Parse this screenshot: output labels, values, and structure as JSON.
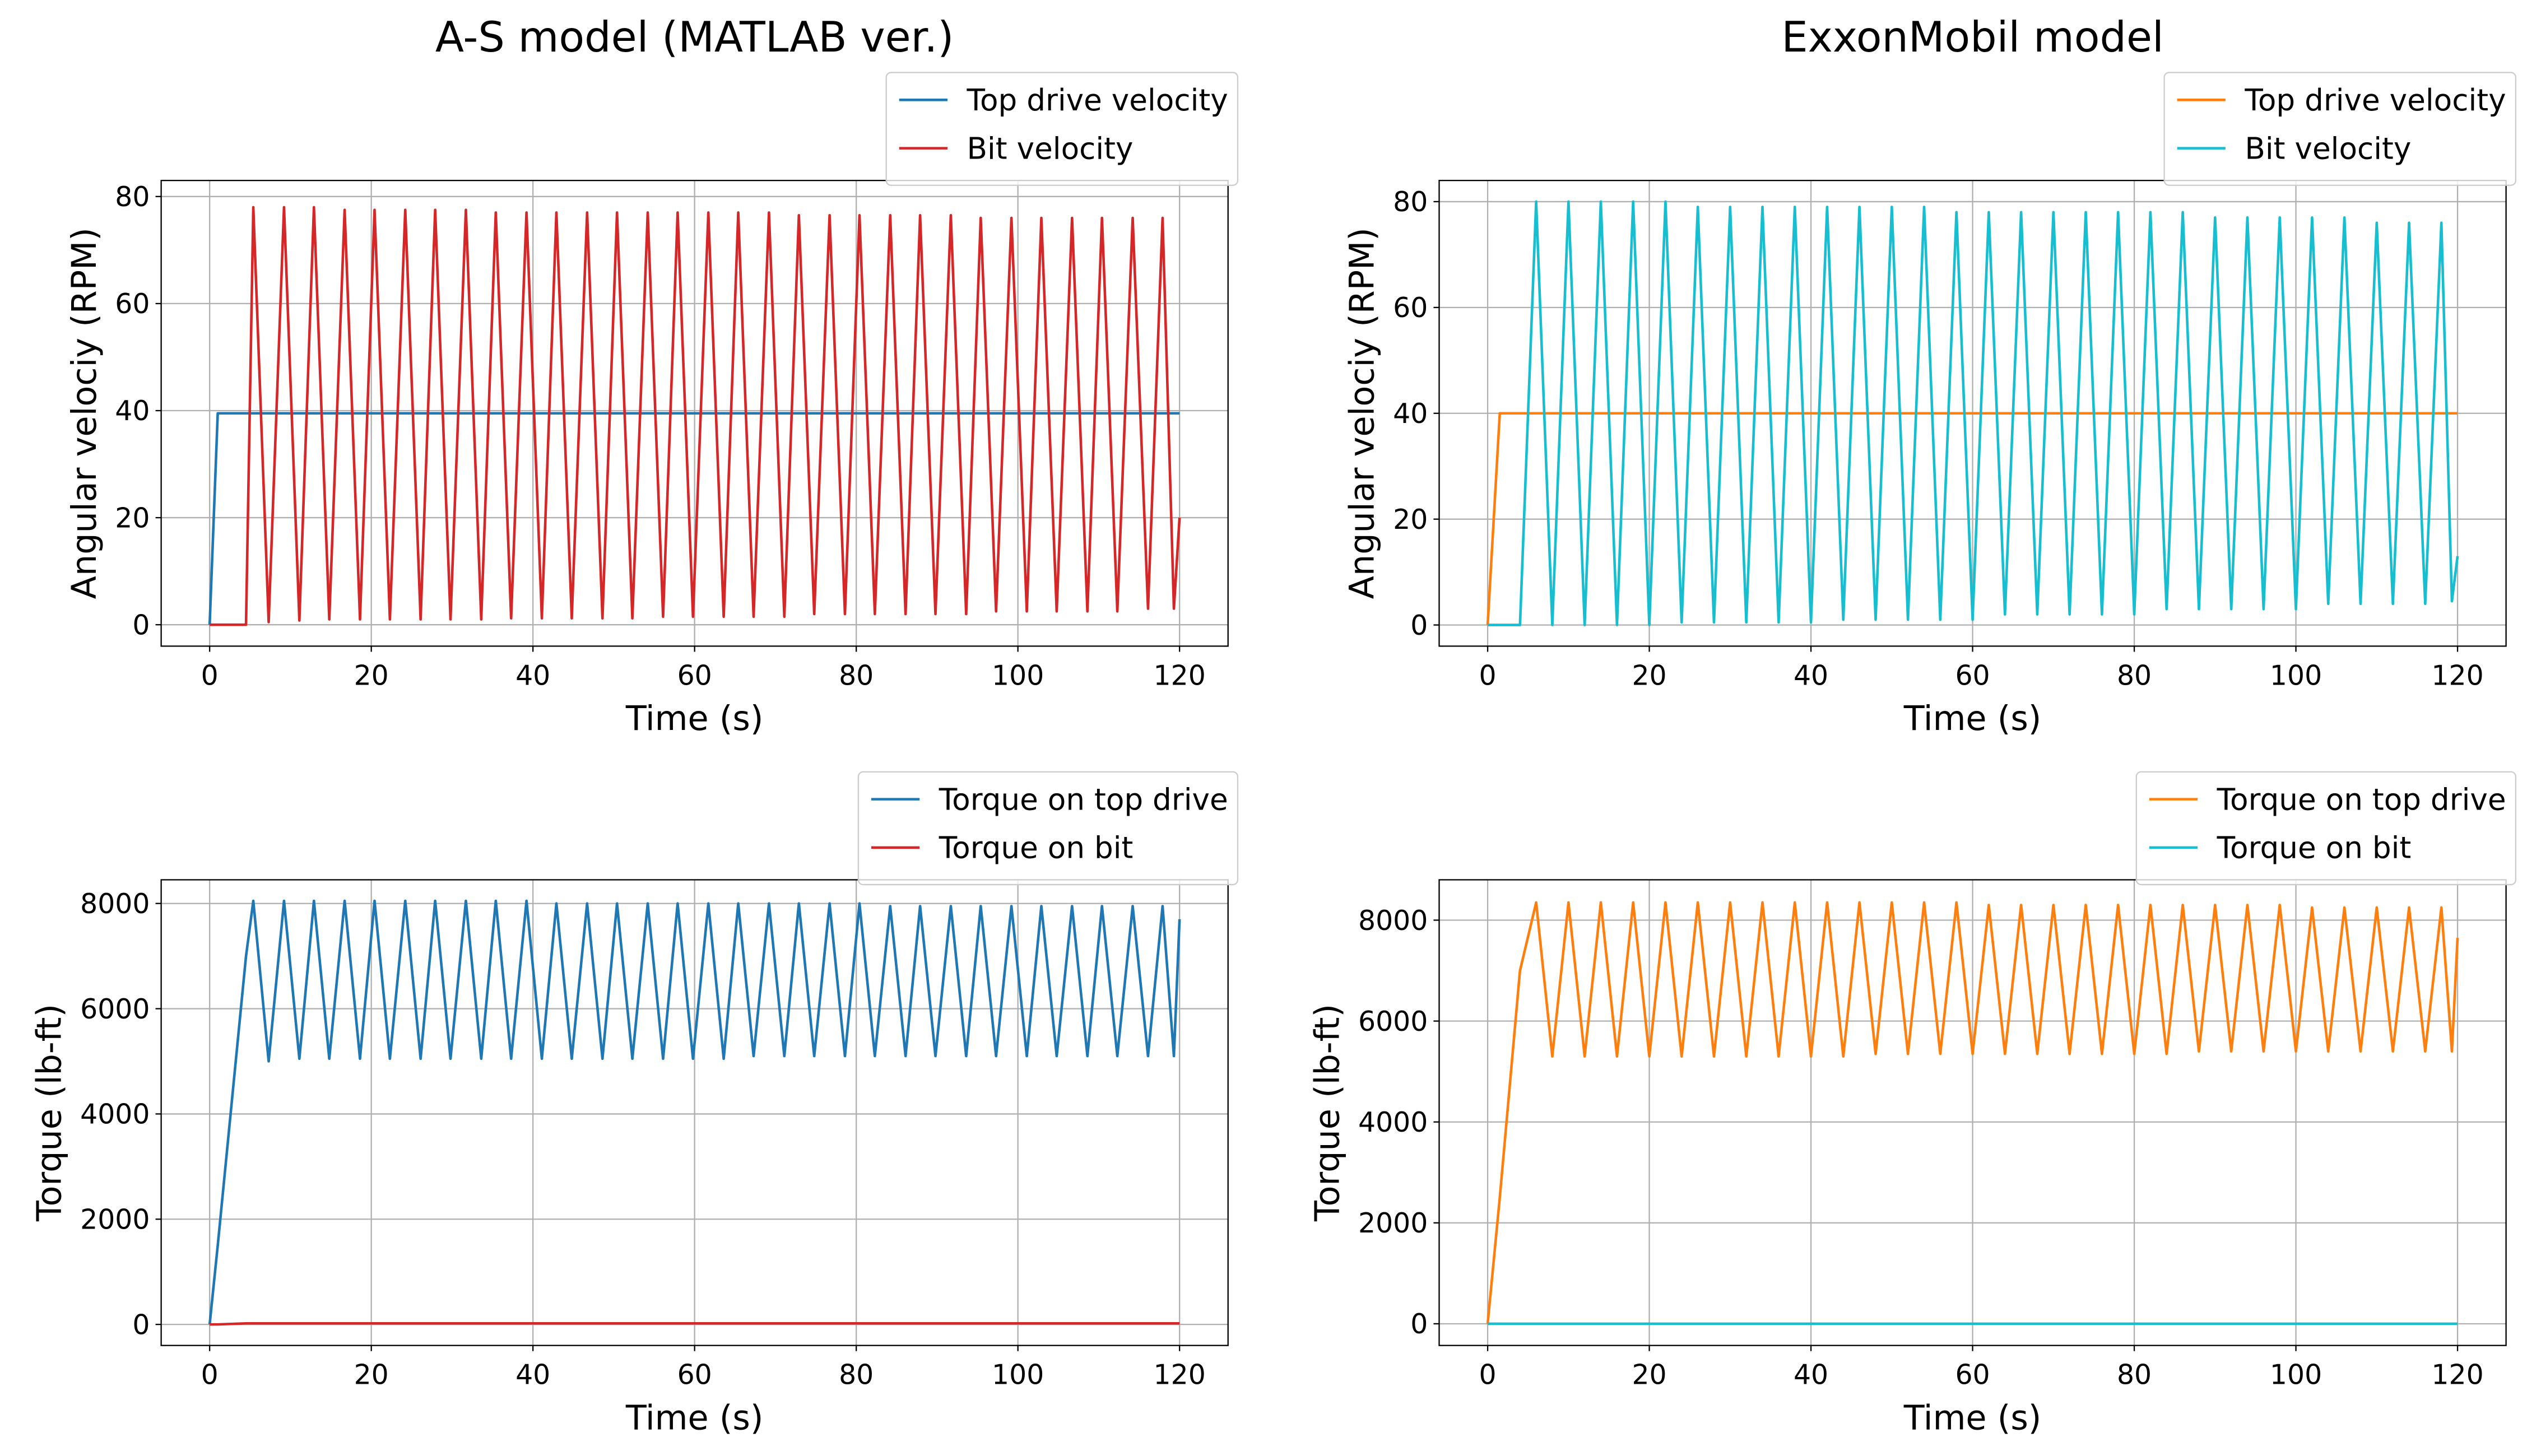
{
  "chart_data": [
    {
      "type": "line",
      "title": "A-S model (MATLAB ver.)",
      "xlabel": "Time (s)",
      "ylabel": "Angular velociy (RPM)",
      "x": [
        0,
        1,
        4.5,
        5.4,
        7.3,
        9.2,
        11.1,
        12.9,
        14.8,
        16.7,
        18.6,
        20.4,
        22.3,
        24.2,
        26.1,
        27.9,
        29.8,
        31.7,
        33.6,
        35.4,
        37.3,
        39.2,
        41.1,
        42.9,
        44.8,
        46.7,
        48.6,
        50.4,
        52.3,
        54.2,
        56.1,
        57.9,
        59.8,
        61.7,
        63.6,
        65.4,
        67.3,
        69.2,
        71.1,
        72.9,
        74.8,
        76.7,
        78.6,
        80.4,
        82.3,
        84.2,
        86.1,
        87.9,
        89.8,
        91.7,
        93.6,
        95.4,
        97.3,
        99.2,
        101.1,
        102.9,
        104.8,
        106.7,
        108.6,
        110.4,
        112.3,
        114.2,
        116.1,
        117.9,
        119.3,
        120
      ],
      "series": [
        {
          "name": "Top drive velocity",
          "color": "#1f77b4",
          "values": [
            0,
            39.5,
            39.5,
            39.5,
            39.5,
            39.5,
            39.5,
            39.5,
            39.5,
            39.5,
            39.5,
            39.5,
            39.5,
            39.5,
            39.5,
            39.5,
            39.5,
            39.5,
            39.5,
            39.5,
            39.5,
            39.5,
            39.5,
            39.5,
            39.5,
            39.5,
            39.5,
            39.5,
            39.5,
            39.5,
            39.5,
            39.5,
            39.5,
            39.5,
            39.5,
            39.5,
            39.5,
            39.5,
            39.5,
            39.5,
            39.5,
            39.5,
            39.5,
            39.5,
            39.5,
            39.5,
            39.5,
            39.5,
            39.5,
            39.5,
            39.5,
            39.5,
            39.5,
            39.5,
            39.5,
            39.5,
            39.5,
            39.5,
            39.5,
            39.5,
            39.5,
            39.5,
            39.5,
            39.5,
            39.5,
            39.5
          ]
        },
        {
          "name": "Bit velocity",
          "color": "#d62728",
          "values": [
            0,
            0,
            0,
            78,
            0.5,
            78,
            0.8,
            78,
            1,
            77.5,
            1,
            77.5,
            1,
            77.5,
            1,
            77.5,
            1,
            77.5,
            1,
            77,
            1.2,
            77,
            1.2,
            77,
            1.2,
            77,
            1.2,
            77,
            1.2,
            77,
            1.5,
            77,
            1.5,
            77,
            1.5,
            77,
            1.5,
            77,
            1.5,
            76.5,
            2,
            76.5,
            2,
            76.5,
            2,
            76.5,
            2,
            76.5,
            2,
            76.5,
            2,
            76,
            2.5,
            76,
            2.5,
            76,
            2.5,
            76,
            2.5,
            76,
            2.5,
            76,
            3,
            76,
            3,
            20
          ]
        }
      ],
      "xlim": [
        -6,
        126
      ],
      "ylim": [
        -4,
        83
      ],
      "xticks": [
        0,
        20,
        40,
        60,
        80,
        100,
        120
      ],
      "yticks": [
        0,
        20,
        40,
        60,
        80
      ],
      "grid": true,
      "legend": "upper right"
    },
    {
      "type": "line",
      "title": "ExxonMobil model",
      "xlabel": "Time (s)",
      "ylabel": "Angular velociy (RPM)",
      "x": [
        0,
        1.5,
        4,
        6,
        8,
        10,
        12,
        14,
        16,
        18,
        20,
        22,
        24,
        26,
        28,
        30,
        32,
        34,
        36,
        38,
        40,
        42,
        44,
        46,
        48,
        50,
        52,
        54,
        56,
        58,
        60,
        62,
        64,
        66,
        68,
        70,
        72,
        74,
        76,
        78,
        80,
        82,
        84,
        86,
        88,
        90,
        92,
        94,
        96,
        98,
        100,
        102,
        104,
        106,
        108,
        110,
        112,
        114,
        116,
        118,
        119.3,
        120
      ],
      "series": [
        {
          "name": "Top drive velocity",
          "color": "#ff7f0e",
          "values": [
            0,
            40,
            40,
            40,
            40,
            40,
            40,
            40,
            40,
            40,
            40,
            40,
            40,
            40,
            40,
            40,
            40,
            40,
            40,
            40,
            40,
            40,
            40,
            40,
            40,
            40,
            40,
            40,
            40,
            40,
            40,
            40,
            40,
            40,
            40,
            40,
            40,
            40,
            40,
            40,
            40,
            40,
            40,
            40,
            40,
            40,
            40,
            40,
            40,
            40,
            40,
            40,
            40,
            40,
            40,
            40,
            40,
            40,
            40,
            40,
            40,
            40
          ]
        },
        {
          "name": "Bit velocity",
          "color": "#17becf",
          "values": [
            0,
            0,
            0,
            80,
            0,
            80,
            0,
            80,
            0,
            80,
            0,
            80,
            0.5,
            79,
            0.5,
            79,
            0.5,
            79,
            0.5,
            79,
            0.5,
            79,
            1,
            79,
            1,
            79,
            1,
            79,
            1,
            78,
            1,
            78,
            2,
            78,
            2,
            78,
            2,
            78,
            2,
            78,
            2,
            78,
            3,
            78,
            3,
            77,
            3,
            77,
            3,
            77,
            3,
            77,
            4,
            77,
            4,
            76,
            4,
            76,
            4,
            76,
            4.5,
            13
          ]
        }
      ],
      "xlim": [
        -6,
        126
      ],
      "ylim": [
        -4,
        84
      ],
      "xticks": [
        0,
        20,
        40,
        60,
        80,
        100,
        120
      ],
      "yticks": [
        0,
        20,
        40,
        60,
        80
      ],
      "grid": true,
      "legend": "upper right"
    },
    {
      "type": "line",
      "xlabel": "Time (s)",
      "ylabel": "Torque (lb-ft)",
      "x": [
        0,
        1,
        4.5,
        5.4,
        7.3,
        9.2,
        11.1,
        12.9,
        14.8,
        16.7,
        18.6,
        20.4,
        22.3,
        24.2,
        26.1,
        27.9,
        29.8,
        31.7,
        33.6,
        35.4,
        37.3,
        39.2,
        41.1,
        42.9,
        44.8,
        46.7,
        48.6,
        50.4,
        52.3,
        54.2,
        56.1,
        57.9,
        59.8,
        61.7,
        63.6,
        65.4,
        67.3,
        69.2,
        71.1,
        72.9,
        74.8,
        76.7,
        78.6,
        80.4,
        82.3,
        84.2,
        86.1,
        87.9,
        89.8,
        91.7,
        93.6,
        95.4,
        97.3,
        99.2,
        101.1,
        102.9,
        104.8,
        106.7,
        108.6,
        110.4,
        112.3,
        114.2,
        116.1,
        117.9,
        119.3,
        120
      ],
      "series": [
        {
          "name": "Torque on top drive",
          "color": "#1f77b4",
          "values": [
            0,
            1500,
            7000,
            8050,
            5000,
            8050,
            5050,
            8050,
            5050,
            8050,
            5050,
            8050,
            5050,
            8050,
            5050,
            8050,
            5050,
            8050,
            5050,
            8050,
            5050,
            8050,
            5050,
            8000,
            5050,
            8000,
            5050,
            8000,
            5050,
            8000,
            5050,
            8000,
            5050,
            8000,
            5050,
            8000,
            5100,
            8000,
            5100,
            8000,
            5100,
            8000,
            5100,
            8000,
            5100,
            7950,
            5100,
            7950,
            5100,
            7950,
            5100,
            7950,
            5100,
            7950,
            5100,
            7950,
            5100,
            7950,
            5100,
            7950,
            5100,
            7950,
            5100,
            7950,
            5100,
            7700
          ]
        },
        {
          "name": "Torque on bit",
          "color": "#d62728",
          "values": [
            0,
            0,
            20,
            20,
            20,
            20,
            20,
            20,
            20,
            20,
            20,
            20,
            20,
            20,
            20,
            20,
            20,
            20,
            20,
            20,
            20,
            20,
            20,
            20,
            20,
            20,
            20,
            20,
            20,
            20,
            20,
            20,
            20,
            20,
            20,
            20,
            20,
            20,
            20,
            20,
            20,
            20,
            20,
            20,
            20,
            20,
            20,
            20,
            20,
            20,
            20,
            20,
            20,
            20,
            20,
            20,
            20,
            20,
            20,
            20,
            20,
            20,
            20,
            20,
            20,
            20
          ]
        }
      ],
      "xlim": [
        -6,
        126
      ],
      "ylim": [
        -400,
        8450
      ],
      "xticks": [
        0,
        20,
        40,
        60,
        80,
        100,
        120
      ],
      "yticks": [
        0,
        2000,
        4000,
        6000,
        8000
      ],
      "grid": true,
      "legend": "upper right"
    },
    {
      "type": "line",
      "xlabel": "Time (s)",
      "ylabel": "Torque (lb-ft)",
      "x": [
        0,
        1.5,
        4,
        6,
        8,
        10,
        12,
        14,
        16,
        18,
        20,
        22,
        24,
        26,
        28,
        30,
        32,
        34,
        36,
        38,
        40,
        42,
        44,
        46,
        48,
        50,
        52,
        54,
        56,
        58,
        60,
        62,
        64,
        66,
        68,
        70,
        72,
        74,
        76,
        78,
        80,
        82,
        84,
        86,
        88,
        90,
        92,
        94,
        96,
        98,
        100,
        102,
        104,
        106,
        108,
        110,
        112,
        114,
        116,
        118,
        119.3,
        120
      ],
      "series": [
        {
          "name": "Torque on top drive",
          "color": "#ff7f0e",
          "values": [
            0,
            2500,
            7000,
            8350,
            5300,
            8350,
            5300,
            8350,
            5300,
            8350,
            5300,
            8350,
            5300,
            8350,
            5300,
            8350,
            5300,
            8350,
            5300,
            8350,
            5300,
            8350,
            5300,
            8350,
            5350,
            8350,
            5350,
            8350,
            5350,
            8350,
            5350,
            8300,
            5350,
            8300,
            5350,
            8300,
            5350,
            8300,
            5350,
            8300,
            5350,
            8300,
            5350,
            8300,
            5400,
            8300,
            5400,
            8300,
            5400,
            8300,
            5400,
            8250,
            5400,
            8250,
            5400,
            8250,
            5400,
            8250,
            5400,
            8250,
            5400,
            7650
          ]
        },
        {
          "name": "Torque on bit",
          "color": "#17becf",
          "values": [
            0,
            0,
            0,
            0,
            0,
            0,
            0,
            0,
            0,
            0,
            0,
            0,
            0,
            0,
            0,
            0,
            0,
            0,
            0,
            0,
            0,
            0,
            0,
            0,
            0,
            0,
            0,
            0,
            0,
            0,
            0,
            0,
            0,
            0,
            0,
            0,
            0,
            0,
            0,
            0,
            0,
            0,
            0,
            0,
            0,
            0,
            0,
            0,
            0,
            0,
            0,
            0,
            0,
            0,
            0,
            0,
            0,
            0,
            0,
            0,
            0,
            0
          ]
        }
      ],
      "xlim": [
        -6,
        126
      ],
      "ylim": [
        -430,
        8800
      ],
      "xticks": [
        0,
        20,
        40,
        60,
        80,
        100,
        120
      ],
      "yticks": [
        0,
        2000,
        4000,
        6000,
        8000
      ],
      "grid": true,
      "legend": "upper right"
    }
  ]
}
